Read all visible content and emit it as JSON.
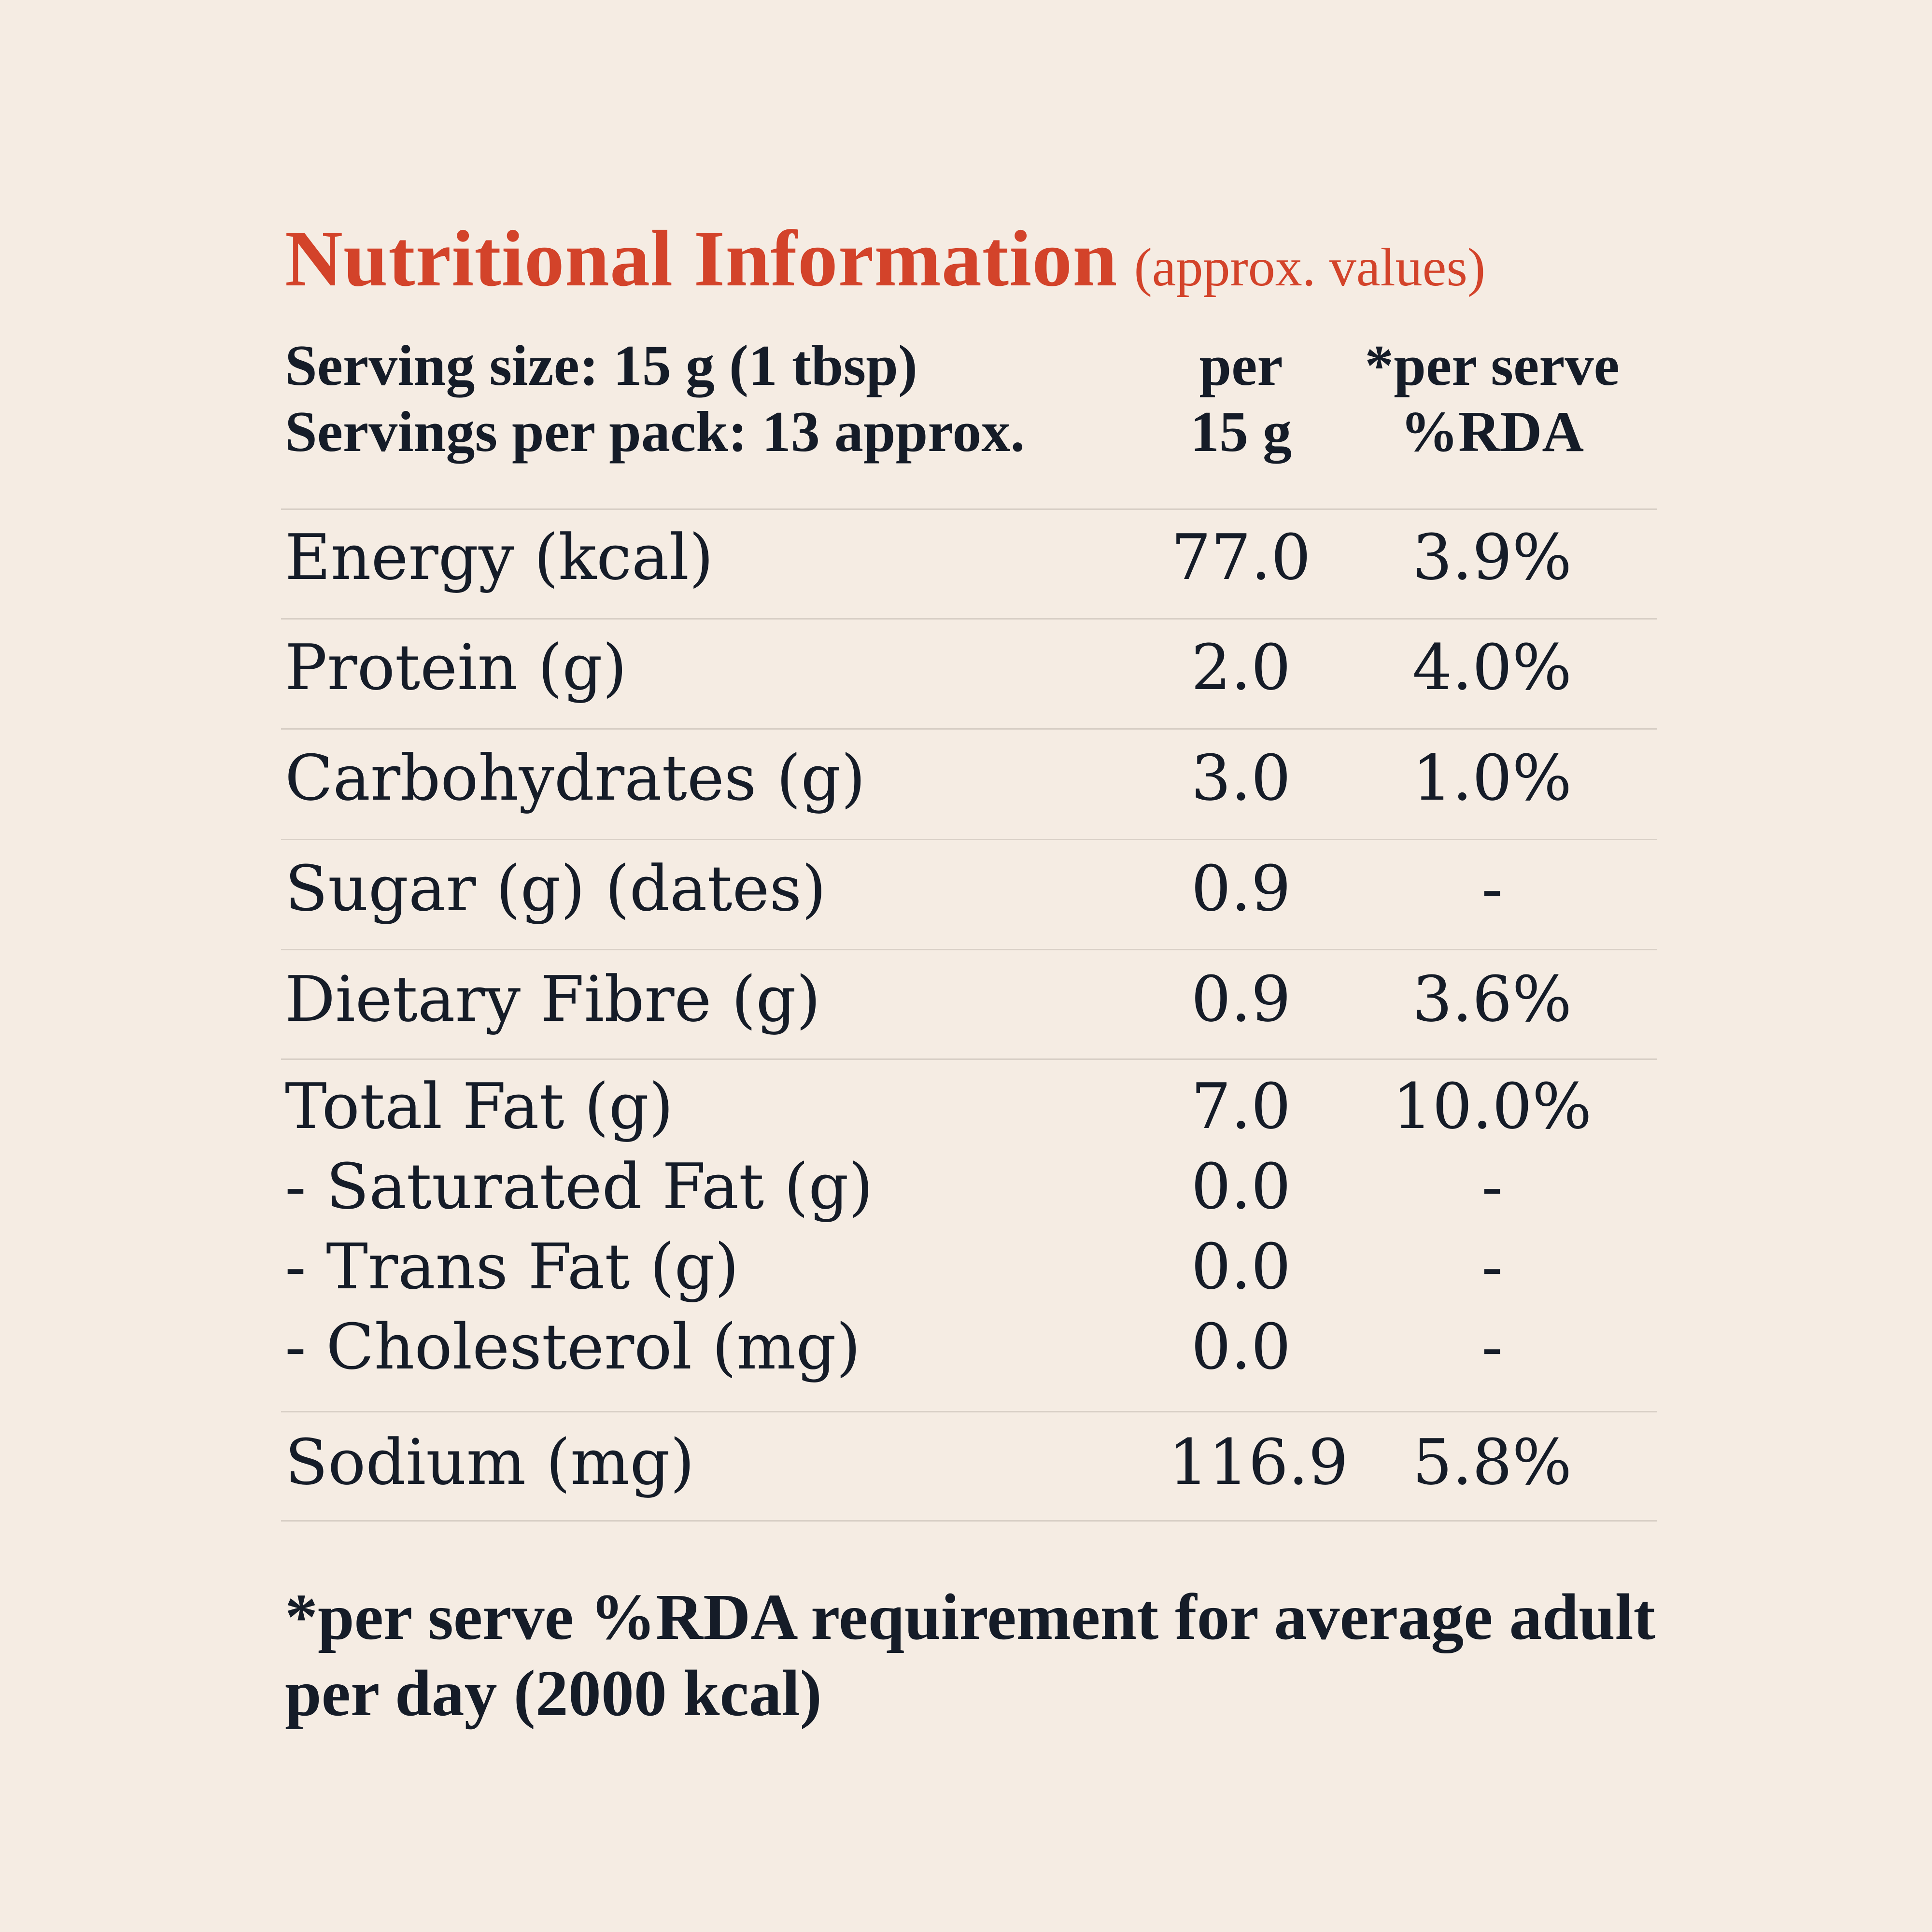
{
  "title": {
    "main": "Nutritional Information",
    "sub": "(approx. values)"
  },
  "header": {
    "serving_size": "Serving size: 15 g (1 tbsp)",
    "servings_per_pack": "Servings per pack: 13 approx.",
    "col_per_line1": "per",
    "col_per_line2": "15 g",
    "col_rda_line1": "*per serve",
    "col_rda_line2": "%RDA"
  },
  "rows": [
    {
      "label": "Energy (kcal)",
      "value": "77.0",
      "rda": "3.9%"
    },
    {
      "label": "Protein (g)",
      "value": "2.0",
      "rda": "4.0%"
    },
    {
      "label": "Carbohydrates (g)",
      "value": "3.0",
      "rda": "1.0%"
    },
    {
      "label": "Sugar (g) (dates)",
      "value": "0.9",
      "rda": "-"
    },
    {
      "label": "Dietary Fibre (g)",
      "value": "0.9",
      "rda": "3.6%"
    }
  ],
  "fat": [
    {
      "label": "Total Fat (g)",
      "value": "7.0",
      "rda": "10.0%"
    },
    {
      "label": "- Saturated Fat (g)",
      "value": "0.0",
      "rda": "-"
    },
    {
      "label": "- Trans Fat (g)",
      "value": "0.0",
      "rda": "-"
    },
    {
      "label": "- Cholesterol (mg)",
      "value": "0.0",
      "rda": "-"
    }
  ],
  "sodium": {
    "label": "Sodium (mg)",
    "value": "116.9",
    "rda": "5.8%"
  },
  "footnote": "*per serve %RDA requirement for average adult per day (2000 kcal)",
  "colors": {
    "background": "#f5ece3",
    "title": "#d3432a",
    "text": "#151c28",
    "rule": "#d8cfc6"
  }
}
